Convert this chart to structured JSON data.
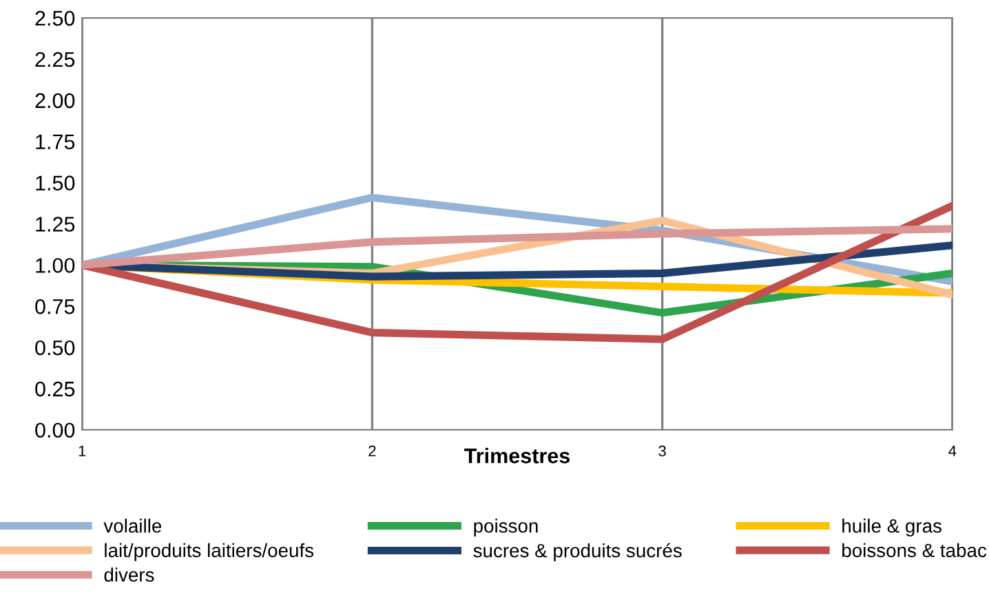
{
  "chart_data": {
    "type": "line",
    "xlabel": "Trimestres",
    "x": [
      1,
      2,
      3,
      4
    ],
    "xlim": [
      1,
      4
    ],
    "xticks": [
      1,
      2,
      3,
      4
    ],
    "ylim": [
      0,
      2.5
    ],
    "yticks": [
      {
        "value": 0,
        "label": "0.00"
      },
      {
        "value": 0.25,
        "label": "0.25"
      },
      {
        "value": 0.5,
        "label": "0.50"
      },
      {
        "value": 0.75,
        "label": "0.75"
      },
      {
        "value": 1,
        "label": "1.00"
      },
      {
        "value": 1.25,
        "label": "1.25"
      },
      {
        "value": 1.5,
        "label": "1.50"
      },
      {
        "value": 1.75,
        "label": "1.75"
      },
      {
        "value": 2,
        "label": "2.00"
      },
      {
        "value": 2.25,
        "label": "2.25"
      },
      {
        "value": 2.5,
        "label": "2.50"
      }
    ],
    "grid": "x",
    "legend": "bottom",
    "marker": "none",
    "line_style": "solid",
    "series": [
      {
        "name": "volaille",
        "color": "#95b3d7",
        "values": [
          1.0,
          1.41,
          1.21,
          0.9
        ]
      },
      {
        "name": "poisson",
        "color": "#2ea44f",
        "values": [
          1.0,
          0.99,
          0.71,
          0.95
        ]
      },
      {
        "name": "huile & gras",
        "color": "#ffc000",
        "values": [
          1.0,
          0.91,
          0.87,
          0.83
        ]
      },
      {
        "name": "lait/produits laitiers/oeufs",
        "color": "#fac090",
        "values": [
          1.0,
          0.95,
          1.27,
          0.82
        ]
      },
      {
        "name": "sucres & produits sucrés",
        "color": "#1f3f6e",
        "values": [
          1.0,
          0.93,
          0.95,
          1.12
        ]
      },
      {
        "name": "boissons & tabac",
        "color": "#c0504d",
        "values": [
          1.0,
          0.59,
          0.55,
          1.36
        ]
      },
      {
        "name": "divers",
        "color": "#d99694",
        "values": [
          1.0,
          1.14,
          1.19,
          1.22
        ]
      }
    ]
  }
}
